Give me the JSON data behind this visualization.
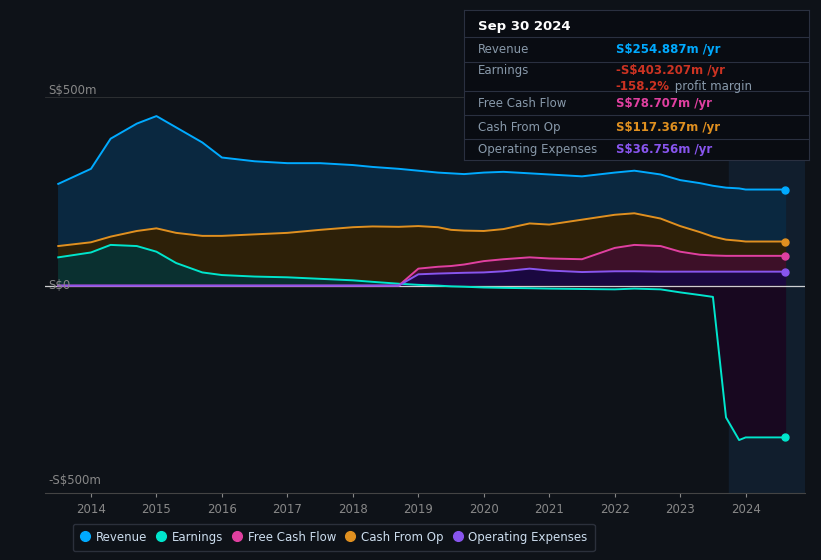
{
  "background_color": "#0e1218",
  "plot_bg_color": "#0e1218",
  "chart_bg_color": "#0a1520",
  "ylabel_top": "S$500m",
  "ylabel_zero": "S$0",
  "ylabel_bottom": "-S$500m",
  "years": [
    2013.5,
    2014.0,
    2014.3,
    2014.7,
    2015.0,
    2015.3,
    2015.7,
    2016.0,
    2016.5,
    2017.0,
    2017.5,
    2018.0,
    2018.3,
    2018.7,
    2019.0,
    2019.3,
    2019.5,
    2019.7,
    2020.0,
    2020.3,
    2020.7,
    2021.0,
    2021.5,
    2022.0,
    2022.3,
    2022.7,
    2023.0,
    2023.3,
    2023.5,
    2023.7,
    2023.9,
    2024.0,
    2024.3,
    2024.6
  ],
  "revenue": [
    270,
    310,
    390,
    430,
    450,
    420,
    380,
    340,
    330,
    325,
    325,
    320,
    315,
    310,
    305,
    300,
    298,
    296,
    300,
    302,
    298,
    295,
    290,
    300,
    305,
    295,
    280,
    272,
    265,
    260,
    258,
    255,
    255,
    255
  ],
  "earnings": [
    75,
    88,
    108,
    105,
    90,
    60,
    35,
    28,
    24,
    22,
    18,
    14,
    10,
    5,
    2,
    0,
    -2,
    -3,
    -5,
    -6,
    -7,
    -8,
    -9,
    -10,
    -8,
    -10,
    -18,
    -25,
    -30,
    -350,
    -410,
    -403,
    -403,
    -403
  ],
  "free_cash_flow": [
    0,
    0,
    0,
    0,
    0,
    0,
    0,
    0,
    0,
    0,
    0,
    0,
    0,
    0,
    45,
    50,
    52,
    56,
    65,
    70,
    75,
    72,
    70,
    100,
    108,
    105,
    90,
    82,
    80,
    79,
    79,
    79,
    79,
    79
  ],
  "cash_from_op": [
    105,
    115,
    130,
    145,
    152,
    140,
    132,
    132,
    136,
    140,
    148,
    155,
    157,
    156,
    158,
    155,
    148,
    146,
    145,
    150,
    165,
    162,
    175,
    188,
    192,
    178,
    158,
    142,
    130,
    122,
    119,
    117,
    117,
    117
  ],
  "operating_expenses": [
    0,
    0,
    0,
    0,
    0,
    0,
    0,
    0,
    0,
    0,
    0,
    0,
    0,
    0,
    30,
    32,
    33,
    34,
    35,
    38,
    45,
    40,
    36,
    38,
    38,
    37,
    37,
    37,
    37,
    37,
    37,
    37,
    37,
    37
  ],
  "revenue_color": "#00aaff",
  "earnings_color": "#00e5cc",
  "free_cash_flow_color": "#e040a0",
  "cash_from_op_color": "#e09020",
  "operating_expenses_color": "#8855ee",
  "revenue_fill": "#0a2840",
  "earnings_fill_pos": "#0a3030",
  "earnings_fill_neg": "#1a0828",
  "free_cash_flow_fill": "#3d1028",
  "cash_from_op_fill": "#2d2008",
  "operating_expenses_fill": "#1a0840",
  "highlight_color": "#111e2d",
  "info_box": {
    "date": "Sep 30 2024",
    "revenue_label": "Revenue",
    "revenue_value": "S$254.887m /yr",
    "revenue_color": "#00aaff",
    "earnings_label": "Earnings",
    "earnings_value": "-S$403.207m /yr",
    "earnings_color": "#cc3322",
    "profit_margin_value": "-158.2%",
    "profit_margin_color": "#cc3322",
    "profit_margin_text": " profit margin",
    "fcf_label": "Free Cash Flow",
    "fcf_value": "S$78.707m /yr",
    "fcf_color": "#e040a0",
    "cfop_label": "Cash From Op",
    "cfop_value": "S$117.367m /yr",
    "cfop_color": "#e09020",
    "opex_label": "Operating Expenses",
    "opex_value": "S$36.756m /yr",
    "opex_color": "#8855ee"
  },
  "legend": [
    {
      "label": "Revenue",
      "color": "#00aaff"
    },
    {
      "label": "Earnings",
      "color": "#00e5cc"
    },
    {
      "label": "Free Cash Flow",
      "color": "#e040a0"
    },
    {
      "label": "Cash From Op",
      "color": "#e09020"
    },
    {
      "label": "Operating Expenses",
      "color": "#8855ee"
    }
  ],
  "xlim": [
    2013.3,
    2024.9
  ],
  "ylim": [
    -550,
    550
  ],
  "xticks": [
    2014,
    2015,
    2016,
    2017,
    2018,
    2019,
    2020,
    2021,
    2022,
    2023,
    2024
  ],
  "highlight_x_start": 2023.75
}
